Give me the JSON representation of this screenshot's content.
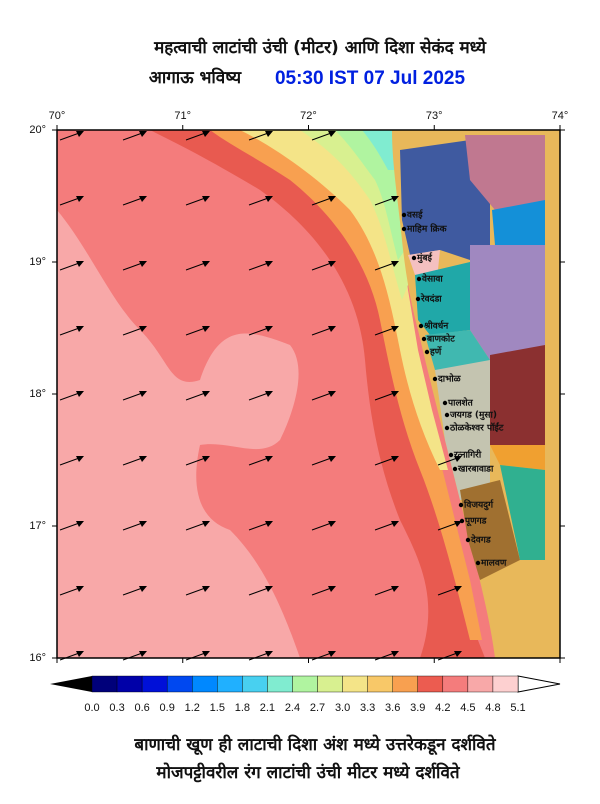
{
  "header": {
    "title": "महत्वाची लाटांची उंची (मीटर) आणि दिशा सेकंद मध्ये",
    "subtitle": "आगाऊ भविष्य",
    "datetime": "05:30 IST 07 Jul 2025"
  },
  "map": {
    "lon_labels": [
      "70°",
      "71°",
      "72°",
      "73°",
      "74°"
    ],
    "lat_labels": [
      "20°",
      "19°",
      "18°",
      "17°",
      "16°"
    ],
    "places": [
      "वसई",
      "माहिम क्रिक",
      "मुंबई",
      "वेसावा",
      "रेवदंडा",
      "श्रीवर्धन",
      "बाणकोट",
      "हर्णे",
      "दाभोळ",
      "पालशेत",
      "जयगड (मुसा)",
      "ठोळकेश्वर पॉईंट",
      "रत्नागिरी",
      "खारबावाडा",
      "विजयदुर्ग",
      "पूणगड",
      "देवगड",
      "मालवण"
    ]
  },
  "colorbar": {
    "labels": [
      "0.0",
      "0.3",
      "0.6",
      "0.9",
      "1.2",
      "1.5",
      "1.8",
      "2.1",
      "2.4",
      "2.7",
      "3.0",
      "3.3",
      "3.6",
      "3.9",
      "4.2",
      "4.5",
      "4.8",
      "5.1"
    ],
    "colors": [
      "#00007a",
      "#0000a8",
      "#0010d8",
      "#0048f0",
      "#0088ff",
      "#20b0ff",
      "#48d0f0",
      "#80ecd0",
      "#b0f4a0",
      "#d8f090",
      "#f4e488",
      "#f8c868",
      "#f8a050",
      "#ec5c50",
      "#f47c7c",
      "#f8a8a8",
      "#fdd0d0"
    ]
  },
  "footer": {
    "line1": "बाणाची खूण ही लाटाची दिशा अंश मध्ये उत्तरेकडून दर्शविते",
    "line2": "मोजपट्टीवरील रंग लाटांची उंची मीटर मध्ये दर्शविते"
  }
}
